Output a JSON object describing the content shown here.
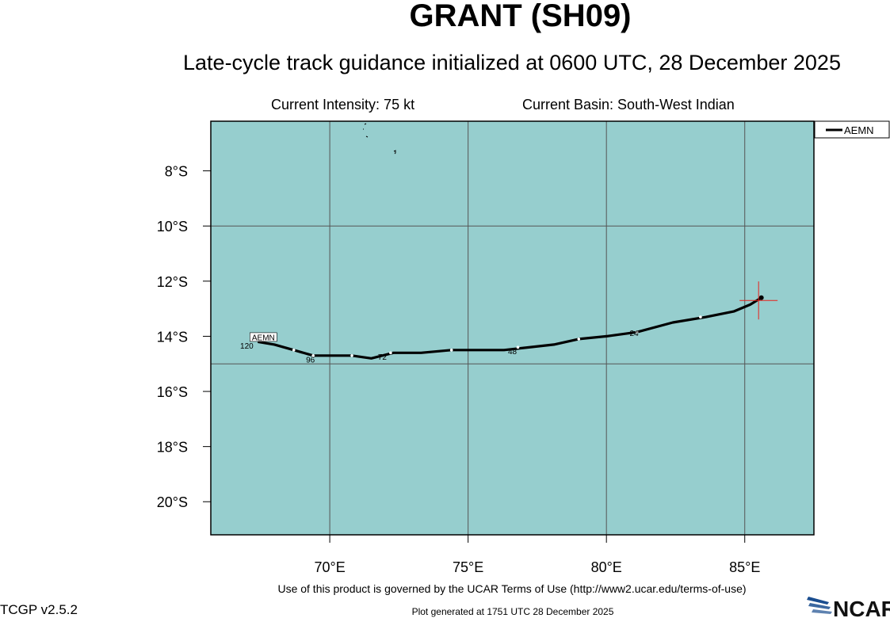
{
  "header": {
    "title": "GRANT (SH09)",
    "subtitle": "Late-cycle track guidance initialized at 0600 UTC, 28 December 2025",
    "intensity": "Current Intensity: 75 kt",
    "basin": "Current Basin: South-West Indian"
  },
  "footer": {
    "terms": "Use of this product is governed by the UCAR Terms of Use (http://www2.ucar.edu/terms-of-use)",
    "version": "TCGP v2.5.2",
    "generated": "Plot generated at 1751 UTC   28 December 2025",
    "logo_text": "NCAR"
  },
  "colors": {
    "ocean": "#96cece",
    "grid": "#555555",
    "track": "#000000",
    "current_position": "#e8201a",
    "logo_blue": "#1a4d8f"
  },
  "chart_data": {
    "type": "line",
    "xlim": [
      65.7,
      87.5
    ],
    "ylim": [
      -21.2,
      -6.2
    ],
    "x_ticks": [
      70,
      75,
      80,
      85
    ],
    "x_tick_labels": [
      "70°E",
      "75°E",
      "80°E",
      "85°E"
    ],
    "y_ticks": [
      -8,
      -10,
      -12,
      -14,
      -16,
      -18,
      -20
    ],
    "y_tick_labels": [
      "8°S",
      "10°S",
      "12°S",
      "14°S",
      "16°S",
      "18°S",
      "20°S"
    ],
    "grid": true,
    "legend": {
      "placement": "top-right-outside",
      "entries": [
        "AEMN"
      ]
    },
    "current_position": {
      "lon": 85.5,
      "lat": -12.7
    },
    "series": [
      {
        "name": "AEMN",
        "lon": [
          85.6,
          85.2,
          84.6,
          83.6,
          82.4,
          81.1,
          80.0,
          79.0,
          78.1,
          77.2,
          76.3,
          75.3,
          74.4,
          73.3,
          72.3,
          71.5,
          70.8,
          70.0,
          69.4,
          68.7,
          68.0,
          67.4
        ],
        "lat": [
          -12.6,
          -12.85,
          -13.1,
          -13.3,
          -13.5,
          -13.85,
          -14.0,
          -14.1,
          -14.3,
          -14.4,
          -14.5,
          -14.5,
          -14.5,
          -14.6,
          -14.6,
          -14.8,
          -14.7,
          -14.7,
          -14.7,
          -14.5,
          -14.3,
          -14.2
        ],
        "marker_lon": [
          83.4,
          81.1,
          79.0,
          76.8,
          74.4,
          72.2,
          70.8,
          69.4,
          68.7
        ],
        "marker_lat": [
          -13.3,
          -13.85,
          -14.1,
          -14.4,
          -14.5,
          -14.6,
          -14.7,
          -14.7,
          -14.5
        ],
        "hour_labels": [
          "24",
          "48",
          "72",
          "96",
          "120"
        ],
        "hour_label_lon": [
          81.0,
          76.6,
          71.9,
          69.3,
          67.0
        ],
        "hour_label_lat": [
          -13.85,
          -14.5,
          -14.7,
          -14.8,
          -14.3
        ],
        "end_label": "AEMN",
        "end_label_lon": [
          67.6
        ],
        "end_label_lat": [
          -14.1
        ]
      }
    ]
  }
}
